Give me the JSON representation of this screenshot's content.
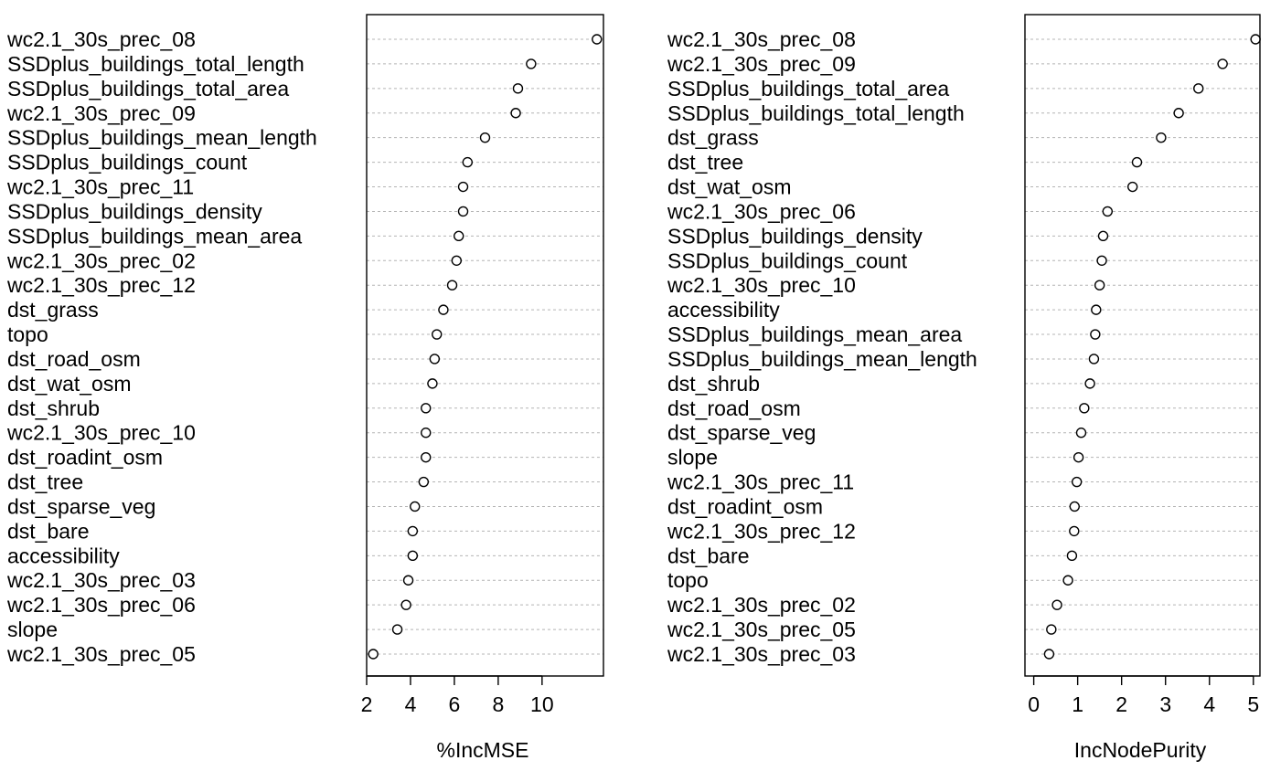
{
  "chart_data": [
    {
      "type": "scatter",
      "xlabel": "%IncMSE",
      "xlim": [
        2,
        12.8
      ],
      "ticks": [
        2,
        4,
        6,
        8,
        10
      ],
      "grid": "horizontal-dotted",
      "variables": [
        "wc2.1_30s_prec_08",
        "SSDplus_buildings_total_length",
        "SSDplus_buildings_total_area",
        "wc2.1_30s_prec_09",
        "SSDplus_buildings_mean_length",
        "SSDplus_buildings_count",
        "wc2.1_30s_prec_11",
        "SSDplus_buildings_density",
        "SSDplus_buildings_mean_area",
        "wc2.1_30s_prec_02",
        "wc2.1_30s_prec_12",
        "dst_grass",
        "topo",
        "dst_road_osm",
        "dst_wat_osm",
        "dst_shrub",
        "wc2.1_30s_prec_10",
        "dst_roadint_osm",
        "dst_tree",
        "dst_sparse_veg",
        "dst_bare",
        "accessibility",
        "wc2.1_30s_prec_03",
        "wc2.1_30s_prec_06",
        "slope",
        "wc2.1_30s_prec_05"
      ],
      "values": [
        12.5,
        9.5,
        8.9,
        8.8,
        7.4,
        6.6,
        6.4,
        6.4,
        6.2,
        6.1,
        5.9,
        5.5,
        5.2,
        5.1,
        5.0,
        4.7,
        4.7,
        4.7,
        4.6,
        4.2,
        4.1,
        4.1,
        3.9,
        3.8,
        3.4,
        2.3
      ]
    },
    {
      "type": "scatter",
      "xlabel": "IncNodePurity",
      "xlim": [
        -0.2,
        5.15
      ],
      "ticks": [
        0,
        1,
        2,
        3,
        4,
        5
      ],
      "grid": "horizontal-dotted",
      "variables": [
        "wc2.1_30s_prec_08",
        "wc2.1_30s_prec_09",
        "SSDplus_buildings_total_area",
        "SSDplus_buildings_total_length",
        "dst_grass",
        "dst_tree",
        "dst_wat_osm",
        "wc2.1_30s_prec_06",
        "SSDplus_buildings_density",
        "SSDplus_buildings_count",
        "wc2.1_30s_prec_10",
        "accessibility",
        "SSDplus_buildings_mean_area",
        "SSDplus_buildings_mean_length",
        "dst_shrub",
        "dst_road_osm",
        "dst_sparse_veg",
        "slope",
        "wc2.1_30s_prec_11",
        "dst_roadint_osm",
        "wc2.1_30s_prec_12",
        "dst_bare",
        "topo",
        "wc2.1_30s_prec_02",
        "wc2.1_30s_prec_05",
        "wc2.1_30s_prec_03"
      ],
      "values": [
        5.05,
        4.3,
        3.75,
        3.3,
        2.9,
        2.35,
        2.25,
        1.68,
        1.58,
        1.55,
        1.5,
        1.42,
        1.4,
        1.37,
        1.28,
        1.15,
        1.08,
        1.02,
        0.98,
        0.93,
        0.92,
        0.87,
        0.78,
        0.53,
        0.4,
        0.35
      ]
    }
  ]
}
